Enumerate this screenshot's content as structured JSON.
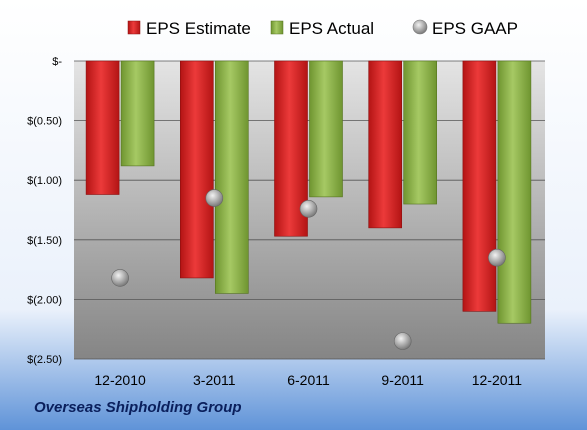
{
  "company": "Overseas Shipholding Group",
  "chart_data": {
    "type": "bar",
    "categories": [
      "12-2010",
      "3-2011",
      "6-2011",
      "9-2011",
      "12-2011"
    ],
    "series": [
      {
        "name": "EPS Estimate",
        "type": "bar",
        "color": "#d42020",
        "values": [
          -1.12,
          -1.82,
          -1.47,
          -1.4,
          -2.1
        ]
      },
      {
        "name": "EPS Actual",
        "type": "bar",
        "color": "#8fb24a",
        "values": [
          -0.88,
          -1.95,
          -1.14,
          -1.2,
          -2.2
        ]
      },
      {
        "name": "EPS GAAP",
        "type": "scatter",
        "color": "#a8a8a8",
        "values": [
          -1.82,
          -1.15,
          -1.24,
          -2.35,
          -1.65
        ]
      }
    ],
    "yticks": [
      "$-",
      "$(0.50)",
      "$(1.00)",
      "$(1.50)",
      "$(2.00)",
      "$(2.50)"
    ],
    "ytick_values": [
      0,
      -0.5,
      -1.0,
      -1.5,
      -2.0,
      -2.5
    ],
    "ylim": [
      -2.5,
      0
    ],
    "grid": true,
    "legend_position": "top"
  }
}
